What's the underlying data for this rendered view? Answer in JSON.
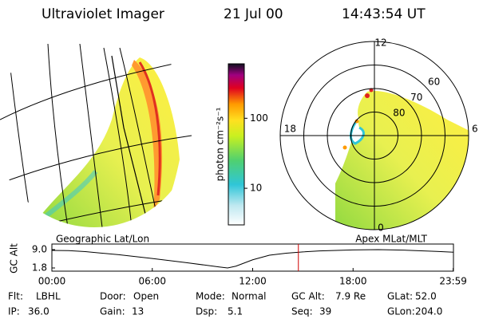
{
  "header": {
    "title": "Ultraviolet Imager",
    "date": "21 Jul 00",
    "time": "14:43:54 UT"
  },
  "colorbar": {
    "label": "photon cm⁻²s⁻¹",
    "log_scale": true,
    "lim": [
      3,
      600
    ],
    "ticks": [
      100,
      10
    ]
  },
  "polar": {
    "rlim": [
      50,
      90
    ],
    "rticks": [
      60,
      70,
      80
    ],
    "mlt_ticks": [
      12,
      18,
      6,
      0
    ]
  },
  "alt_plot": {
    "left_title": "Geographic Lat/Lon",
    "right_title": "Apex MLat/MLT",
    "ylabel": "GC Alt",
    "ylim": [
      1.8,
      9.0
    ],
    "yticks": [
      {
        "value": 9.0,
        "label": "9.0"
      },
      {
        "value": 1.8,
        "label": "1.8"
      }
    ],
    "xlim": [
      0,
      24
    ],
    "xticks": [
      {
        "value": 0,
        "label": "00:00"
      },
      {
        "value": 6,
        "label": "06:00"
      },
      {
        "value": 12,
        "label": "12:00"
      },
      {
        "value": 18,
        "label": "18:00"
      },
      {
        "value": 23.983,
        "label": "23:59"
      }
    ],
    "x": [
      0,
      1,
      2,
      4,
      6,
      8,
      10,
      10.5,
      11,
      12,
      13,
      14,
      15,
      16,
      18,
      19.5,
      21,
      23,
      24
    ],
    "values": [
      8.7,
      8.6,
      8.2,
      7.0,
      5.5,
      3.9,
      2.2,
      1.8,
      2.5,
      5.0,
      6.8,
      7.6,
      8.1,
      8.5,
      8.9,
      9.0,
      8.8,
      8.3,
      8.0
    ],
    "line_color": "#000000",
    "cursor": 14.732,
    "cursor_color": "#d00000"
  },
  "info": [
    [
      [
        "Flt:",
        "LBHL"
      ],
      [
        "Door:",
        "Open"
      ],
      [
        "Mode:",
        "Normal"
      ],
      [
        "GC Alt:",
        "7.9 Re"
      ],
      [
        "GLat:",
        "52.0"
      ]
    ],
    [
      [
        "IP:",
        "36.0"
      ],
      [
        "Gain:",
        "13"
      ],
      [
        "Dsp:",
        "5.1"
      ],
      [
        "Seq:",
        "39"
      ],
      [
        "GLon:",
        "204.0"
      ]
    ]
  ]
}
